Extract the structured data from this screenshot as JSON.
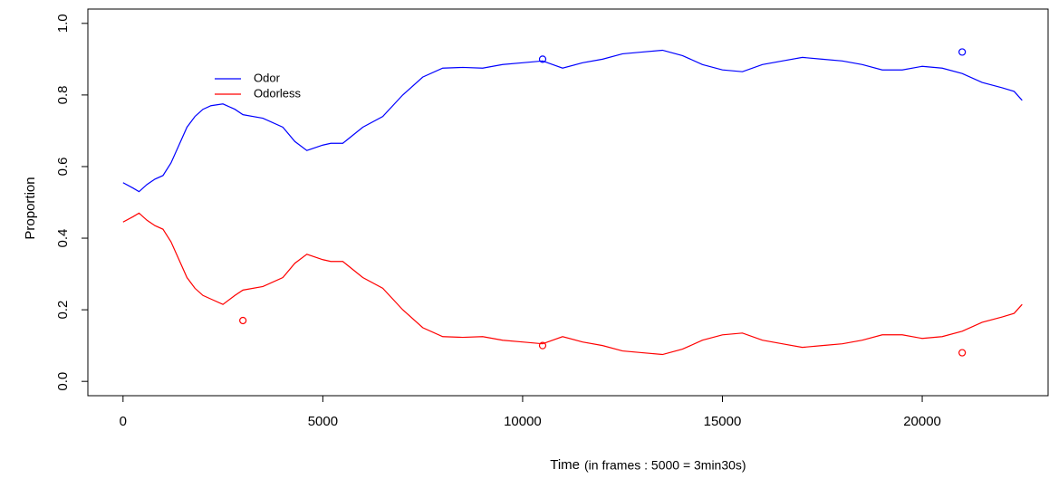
{
  "chart_data": {
    "type": "line",
    "xlabel": "Time",
    "xlabel_note": "(in frames : 5000 = 3min30s)",
    "ylabel": "Proportion",
    "x": [
      0,
      250,
      400,
      600,
      800,
      1000,
      1200,
      1400,
      1600,
      1800,
      2000,
      2200,
      2500,
      2800,
      3000,
      3500,
      4000,
      4300,
      4600,
      5000,
      5200,
      5500,
      6000,
      6500,
      7000,
      7500,
      8000,
      8500,
      9000,
      9500,
      10000,
      10500,
      11000,
      11500,
      12000,
      12500,
      13000,
      13500,
      14000,
      14500,
      15000,
      15500,
      16000,
      16500,
      17000,
      17500,
      18000,
      18500,
      19000,
      19500,
      20000,
      20500,
      21000,
      21500,
      22000,
      22300,
      22500
    ],
    "series": [
      {
        "name": "Odor",
        "color": "#0000ff",
        "values": [
          0.555,
          0.54,
          0.53,
          0.55,
          0.565,
          0.575,
          0.61,
          0.66,
          0.71,
          0.74,
          0.76,
          0.77,
          0.775,
          0.76,
          0.745,
          0.735,
          0.71,
          0.67,
          0.645,
          0.66,
          0.665,
          0.665,
          0.71,
          0.74,
          0.8,
          0.85,
          0.875,
          0.877,
          0.875,
          0.885,
          0.89,
          0.895,
          0.875,
          0.89,
          0.9,
          0.915,
          0.92,
          0.925,
          0.91,
          0.885,
          0.87,
          0.865,
          0.885,
          0.895,
          0.905,
          0.9,
          0.895,
          0.885,
          0.87,
          0.87,
          0.88,
          0.875,
          0.86,
          0.835,
          0.82,
          0.81,
          0.785
        ]
      },
      {
        "name": "Odorless",
        "color": "#ff0000",
        "values": [
          0.445,
          0.46,
          0.47,
          0.45,
          0.435,
          0.425,
          0.39,
          0.34,
          0.29,
          0.26,
          0.24,
          0.23,
          0.215,
          0.24,
          0.255,
          0.265,
          0.29,
          0.33,
          0.355,
          0.34,
          0.335,
          0.335,
          0.29,
          0.26,
          0.2,
          0.15,
          0.125,
          0.123,
          0.125,
          0.115,
          0.11,
          0.105,
          0.125,
          0.11,
          0.1,
          0.085,
          0.08,
          0.075,
          0.09,
          0.115,
          0.13,
          0.135,
          0.115,
          0.105,
          0.095,
          0.1,
          0.105,
          0.115,
          0.13,
          0.13,
          0.12,
          0.125,
          0.14,
          0.165,
          0.18,
          0.19,
          0.215
        ]
      }
    ],
    "points": [
      {
        "color": "#0000ff",
        "x": [
          10500,
          21000
        ],
        "values": [
          0.9,
          0.92
        ]
      },
      {
        "color": "#ff0000",
        "x": [
          3000,
          10500,
          21000
        ],
        "values": [
          0.17,
          0.1,
          0.08
        ]
      }
    ],
    "xlim": [
      -880,
      23150
    ],
    "ylim": [
      -0.04,
      1.04
    ],
    "xticks": [
      0,
      5000,
      10000,
      15000,
      20000
    ],
    "yticks": [
      {
        "value": 0,
        "label": "0.0"
      },
      0.2,
      0.4,
      0.6,
      0.8,
      {
        "value": 1,
        "label": "1.0"
      }
    ]
  }
}
